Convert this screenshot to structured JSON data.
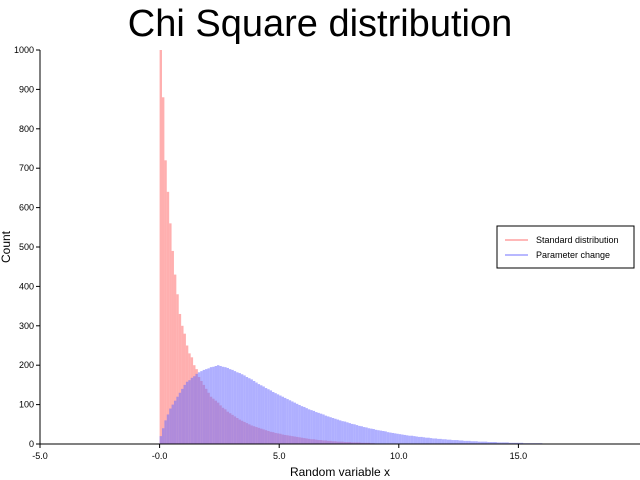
{
  "chart_data": {
    "type": "bar",
    "title": "Chi Square distribution",
    "xlabel": "Random variable x",
    "ylabel": "Count",
    "xlim": [
      -5,
      20
    ],
    "ylim": [
      0,
      1000
    ],
    "bin_width": 0.1,
    "xticks": [
      -5,
      0,
      5,
      10,
      15
    ],
    "xtick_labels": [
      "-5.0",
      "-0.0",
      "5.0",
      "10.0",
      "15.0"
    ],
    "yticks": [
      0,
      100,
      200,
      300,
      400,
      500,
      600,
      700,
      800,
      900,
      1000
    ],
    "ytick_labels": [
      "0",
      "100",
      "200",
      "300",
      "400",
      "500",
      "600",
      "700",
      "800",
      "900",
      "1000"
    ],
    "grid": false,
    "legend_position": "right",
    "series": [
      {
        "name": "Standard distribution",
        "color": "#ff8080",
        "x_start": 0.0,
        "values": [
          1000,
          880,
          720,
          640,
          560,
          490,
          430,
          380,
          330,
          300,
          280,
          250,
          230,
          220,
          200,
          190,
          170,
          160,
          150,
          140,
          130,
          120,
          115,
          110,
          105,
          98,
          92,
          88,
          82,
          78,
          74,
          70,
          66,
          62,
          59,
          56,
          53,
          50,
          47,
          45,
          43,
          41,
          39,
          37,
          35,
          33,
          31,
          30,
          28,
          27,
          26,
          24,
          23,
          22,
          21,
          20,
          19,
          18,
          17,
          16,
          15,
          14,
          13,
          12,
          12,
          11,
          10,
          10,
          9,
          9,
          8,
          8,
          7,
          7,
          6,
          6,
          6,
          5,
          5,
          5,
          4,
          4,
          4,
          4,
          3,
          3,
          3,
          3,
          2,
          2
        ]
      },
      {
        "name": "Parameter change",
        "color": "#8080ff",
        "x_start": 0.0,
        "values": [
          20,
          40,
          60,
          75,
          90,
          100,
          110,
          120,
          130,
          140,
          150,
          158,
          162,
          168,
          172,
          178,
          182,
          185,
          188,
          190,
          192,
          195,
          196,
          198,
          200,
          198,
          196,
          195,
          193,
          190,
          188,
          185,
          182,
          180,
          177,
          174,
          170,
          167,
          164,
          160,
          156,
          152,
          149,
          146,
          142,
          139,
          136,
          132,
          129,
          126,
          123,
          120,
          117,
          114,
          111,
          108,
          105,
          102,
          99,
          96,
          94,
          91,
          88,
          86,
          84,
          81,
          79,
          77,
          75,
          72,
          70,
          68,
          66,
          64,
          62,
          60,
          58,
          57,
          55,
          53,
          51,
          50,
          48,
          46,
          45,
          43,
          42,
          40,
          39,
          38,
          36,
          35,
          34,
          33,
          32,
          30,
          29,
          28,
          27,
          26,
          25,
          24,
          23,
          22,
          21,
          21,
          20,
          19,
          18,
          18,
          17,
          16,
          16,
          15,
          14,
          14,
          13,
          13,
          12,
          12,
          11,
          11,
          10,
          10,
          10,
          9,
          9,
          8,
          8,
          8,
          7,
          7,
          7,
          6,
          6,
          6,
          6,
          5,
          5,
          5,
          5,
          4,
          4,
          4,
          4,
          4,
          3,
          3,
          3,
          3,
          3,
          3,
          2,
          2,
          2,
          2,
          2,
          2,
          2,
          2,
          1,
          1,
          1,
          1,
          1,
          1,
          1,
          1,
          1,
          1,
          1,
          1,
          1,
          1,
          1,
          1,
          1,
          1,
          1,
          1
        ]
      }
    ]
  }
}
